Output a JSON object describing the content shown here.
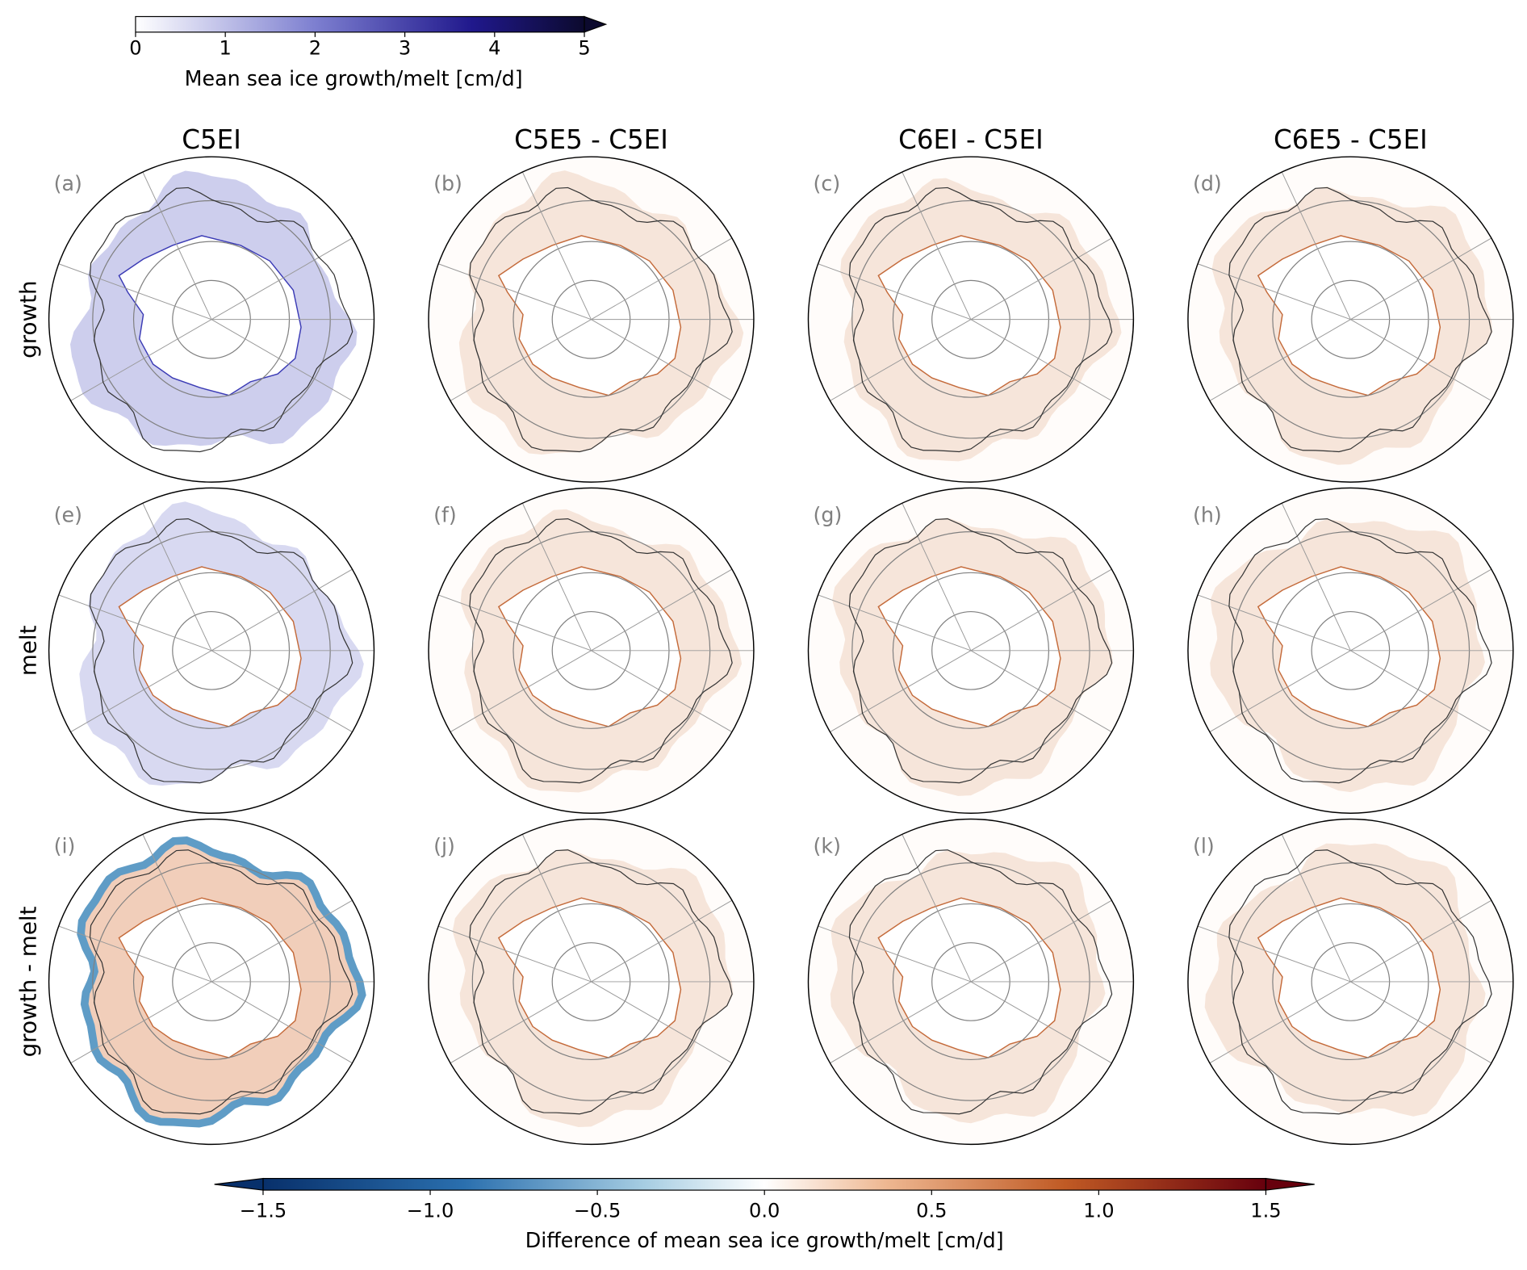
{
  "top_colorbar": {
    "ticks": [
      0,
      1,
      2,
      3,
      4,
      5
    ],
    "lim": [
      0,
      5
    ],
    "label": "Mean sea ice growth/melt [cm/d]"
  },
  "columns": [
    "C5EI",
    "C5E5 - C5EI",
    "C6EI - C5EI",
    "C6E5 - C5EI"
  ],
  "rows": [
    "growth",
    "melt",
    "growth - melt"
  ],
  "panels": [
    [
      "(a)",
      "(b)",
      "(c)",
      "(d)"
    ],
    [
      "(e)",
      "(f)",
      "(g)",
      "(h)"
    ],
    [
      "(i)",
      "(j)",
      "(k)",
      "(l)"
    ]
  ],
  "bottom_colorbar": {
    "ticks": [
      {
        "value": -1.5,
        "label": "−1.5"
      },
      {
        "value": -1.0,
        "label": "−1.0"
      },
      {
        "value": -0.5,
        "label": "−0.5"
      },
      {
        "value": 0,
        "label": "0.0"
      },
      0.5,
      {
        "value": 1.0,
        "label": "1.0"
      },
      1.5
    ],
    "lim": [
      -1.5,
      1.5
    ],
    "label": "Difference of mean sea ice growth/melt [cm/d]"
  }
}
